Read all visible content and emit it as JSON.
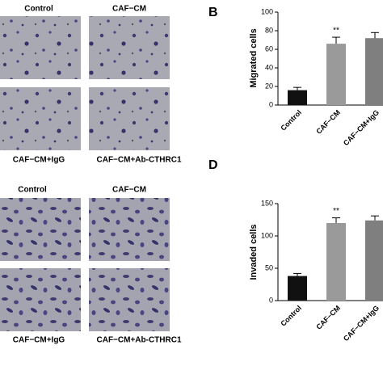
{
  "image_labels": {
    "top": [
      "Control",
      "CAF−CM",
      "CAF−CM+IgG",
      "CAF−CM+Ab-CTHRC1"
    ],
    "bottom": [
      "Control",
      "CAF−CM",
      "CAF−CM+IgG",
      "CAF−CM+Ab-CTHRC1"
    ]
  },
  "chart_data": [
    {
      "type": "bar",
      "panel": "B",
      "y_label": "Migrated cells",
      "categories": [
        "Control",
        "CAF−CM",
        "CAF−CM+IgG"
      ],
      "values": [
        16,
        66,
        72
      ],
      "errors": [
        3,
        7,
        6
      ],
      "colors": [
        "#111111",
        "#9a9a9a",
        "#7f7f7f"
      ],
      "ylim": [
        0,
        100
      ],
      "yticks": [
        0,
        20,
        40,
        60,
        80,
        100
      ],
      "annotation": "**"
    },
    {
      "type": "bar",
      "panel": "D",
      "y_label": "Invaded cells",
      "categories": [
        "Control",
        "CAF−CM",
        "CAF−CM+IgG"
      ],
      "values": [
        38,
        120,
        124
      ],
      "errors": [
        4,
        8,
        7
      ],
      "colors": [
        "#111111",
        "#9a9a9a",
        "#7f7f7f"
      ],
      "ylim": [
        0,
        150
      ],
      "yticks": [
        0,
        50,
        100,
        150
      ],
      "annotation": "**"
    }
  ]
}
